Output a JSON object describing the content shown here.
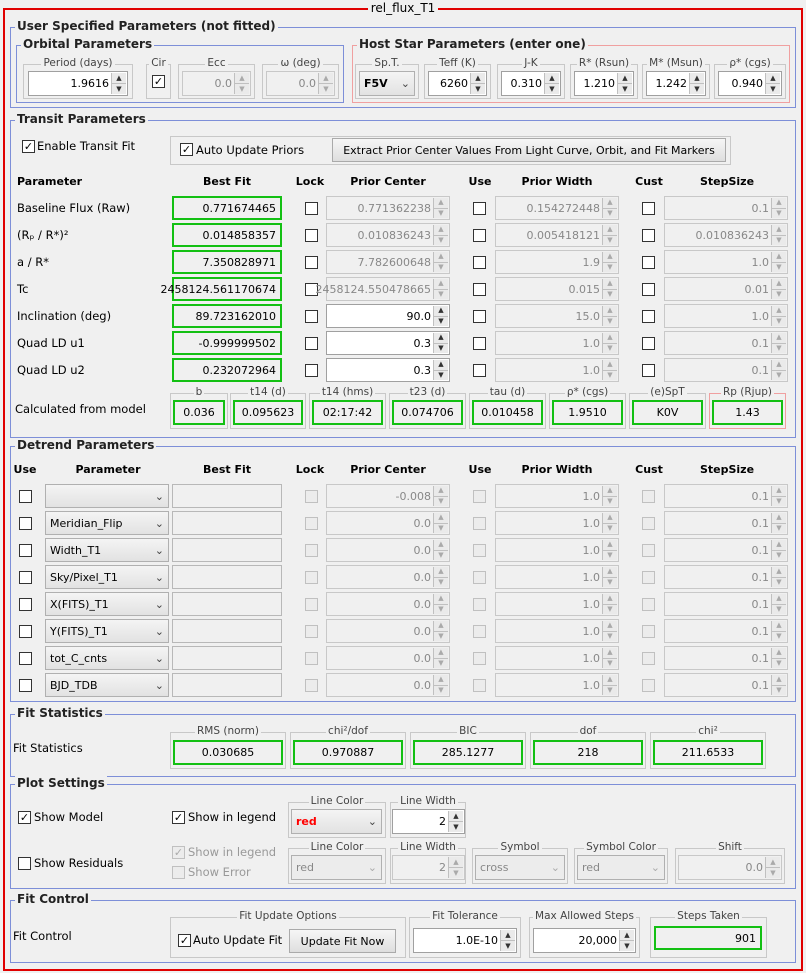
{
  "title": "rel_flux_T1",
  "colors": {
    "frame": "#e00000",
    "fit_box_border": "#13c013",
    "group_border": "#7d8fd8",
    "line_color_value": "#ff0000"
  },
  "user_params": {
    "title": "User Specified Parameters (not fitted)",
    "orbital": {
      "title": "Orbital Parameters",
      "period": {
        "label": "Period (days)",
        "value": "1.9616"
      },
      "cir": {
        "label": "Cir",
        "checked": true
      },
      "ecc": {
        "label": "Ecc",
        "value": "0.0"
      },
      "omega": {
        "label": "ω (deg)",
        "value": "0.0"
      }
    },
    "host": {
      "title": "Host Star Parameters (enter one)",
      "spt": {
        "label": "Sp.T.",
        "value": "F5V"
      },
      "teff": {
        "label": "Teff (K)",
        "value": "6260"
      },
      "jk": {
        "label": "J-K",
        "value": "0.310"
      },
      "rstar": {
        "label": "R* (Rsun)",
        "value": "1.210"
      },
      "mstar": {
        "label": "M* (Msun)",
        "value": "1.242"
      },
      "rho": {
        "label": "ρ* (cgs)",
        "value": "0.940"
      }
    }
  },
  "transit": {
    "title": "Transit Parameters",
    "enable_label": "Enable Transit Fit",
    "auto_update_label": "Auto Update Priors",
    "extract_button": "Extract Prior Center Values From Light Curve, Orbit, and Fit Markers",
    "headers": {
      "parameter": "Parameter",
      "best_fit": "Best Fit",
      "lock": "Lock",
      "prior_center": "Prior Center",
      "use": "Use",
      "prior_width": "Prior Width",
      "cust": "Cust",
      "step": "StepSize"
    },
    "rows": [
      {
        "name": "Baseline Flux (Raw)",
        "best_fit": "0.771674465",
        "prior_center": "0.771362238",
        "pc_enabled": false,
        "prior_width": "0.154272448",
        "step": "0.1"
      },
      {
        "name": "(Rₚ / R*)²",
        "best_fit": "0.014858357",
        "prior_center": "0.010836243",
        "pc_enabled": false,
        "prior_width": "0.005418121",
        "step": "0.010836243"
      },
      {
        "name": "a / R*",
        "best_fit": "7.350828971",
        "prior_center": "7.782600648",
        "pc_enabled": false,
        "prior_width": "1.9",
        "step": "1.0"
      },
      {
        "name": "Tc",
        "best_fit": "2458124.561170674",
        "prior_center": "2458124.550478665",
        "pc_enabled": false,
        "prior_width": "0.015",
        "step": "0.01"
      },
      {
        "name": "Inclination (deg)",
        "best_fit": "89.723162010",
        "prior_center": "90.0",
        "pc_enabled": true,
        "prior_width": "15.0",
        "step": "1.0"
      },
      {
        "name": "Quad LD u1",
        "best_fit": "-0.999999502",
        "prior_center": "0.3",
        "pc_enabled": true,
        "prior_width": "1.0",
        "step": "0.1"
      },
      {
        "name": "Quad LD u2",
        "best_fit": "0.232072964",
        "prior_center": "0.3",
        "pc_enabled": true,
        "prior_width": "1.0",
        "step": "0.1"
      }
    ],
    "calc": {
      "label": "Calculated from model",
      "items": [
        {
          "label": "b",
          "value": "0.036"
        },
        {
          "label": "t14 (d)",
          "value": "0.095623"
        },
        {
          "label": "t14 (hms)",
          "value": "02:17:42"
        },
        {
          "label": "t23 (d)",
          "value": "0.074706"
        },
        {
          "label": "tau (d)",
          "value": "0.010458"
        },
        {
          "label": "ρ* (cgs)",
          "value": "1.9510"
        },
        {
          "label": "(e)SpT",
          "value": "K0V"
        },
        {
          "label": "Rp (Rjup)",
          "value": "1.43"
        }
      ]
    }
  },
  "detrend": {
    "title": "Detrend Parameters",
    "headers": {
      "use": "Use",
      "parameter": "Parameter",
      "best_fit": "Best Fit",
      "lock": "Lock",
      "prior_center": "Prior Center",
      "use2": "Use",
      "prior_width": "Prior Width",
      "cust": "Cust",
      "step": "StepSize"
    },
    "rows": [
      {
        "param": "",
        "prior_center": "-0.008",
        "prior_width": "1.0",
        "step": "0.1"
      },
      {
        "param": "Meridian_Flip",
        "prior_center": "0.0",
        "prior_width": "1.0",
        "step": "0.1"
      },
      {
        "param": "Width_T1",
        "prior_center": "0.0",
        "prior_width": "1.0",
        "step": "0.1"
      },
      {
        "param": "Sky/Pixel_T1",
        "prior_center": "0.0",
        "prior_width": "1.0",
        "step": "0.1"
      },
      {
        "param": "X(FITS)_T1",
        "prior_center": "0.0",
        "prior_width": "1.0",
        "step": "0.1"
      },
      {
        "param": "Y(FITS)_T1",
        "prior_center": "0.0",
        "prior_width": "1.0",
        "step": "0.1"
      },
      {
        "param": "tot_C_cnts",
        "prior_center": "0.0",
        "prior_width": "1.0",
        "step": "0.1"
      },
      {
        "param": "BJD_TDB",
        "prior_center": "0.0",
        "prior_width": "1.0",
        "step": "0.1"
      }
    ]
  },
  "fit_stats": {
    "title": "Fit Statistics",
    "label": "Fit Statistics",
    "items": [
      {
        "label": "RMS (norm)",
        "value": "0.030685"
      },
      {
        "label": "chi²/dof",
        "value": "0.970887"
      },
      {
        "label": "BIC",
        "value": "285.1277"
      },
      {
        "label": "dof",
        "value": "218"
      },
      {
        "label": "chi²",
        "value": "211.6533"
      }
    ]
  },
  "plot": {
    "title": "Plot Settings",
    "show_model": {
      "label": "Show Model",
      "checked": true
    },
    "model_legend": {
      "label": "Show in legend",
      "checked": true
    },
    "model_line_color": {
      "label": "Line Color",
      "value": "red"
    },
    "model_line_width": {
      "label": "Line Width",
      "value": "2"
    },
    "show_residuals": {
      "label": "Show Residuals",
      "checked": false
    },
    "resid_legend": {
      "label": "Show in legend",
      "checked": true
    },
    "resid_error": {
      "label": "Show Error",
      "checked": false
    },
    "resid_line_color": {
      "label": "Line Color",
      "value": "red"
    },
    "resid_line_width": {
      "label": "Line Width",
      "value": "2"
    },
    "resid_symbol": {
      "label": "Symbol",
      "value": "cross"
    },
    "resid_symbol_color": {
      "label": "Symbol Color",
      "value": "red"
    },
    "resid_shift": {
      "label": "Shift",
      "value": "0.0"
    }
  },
  "fit_control": {
    "title": "Fit Control",
    "label": "Fit Control",
    "options_label": "Fit Update Options",
    "auto_update": {
      "label": "Auto Update Fit",
      "checked": true
    },
    "update_button": "Update Fit Now",
    "tolerance": {
      "label": "Fit Tolerance",
      "value": "1.0E-10"
    },
    "max_steps": {
      "label": "Max Allowed Steps",
      "value": "20,000"
    },
    "steps_taken": {
      "label": "Steps Taken",
      "value": "901"
    }
  }
}
